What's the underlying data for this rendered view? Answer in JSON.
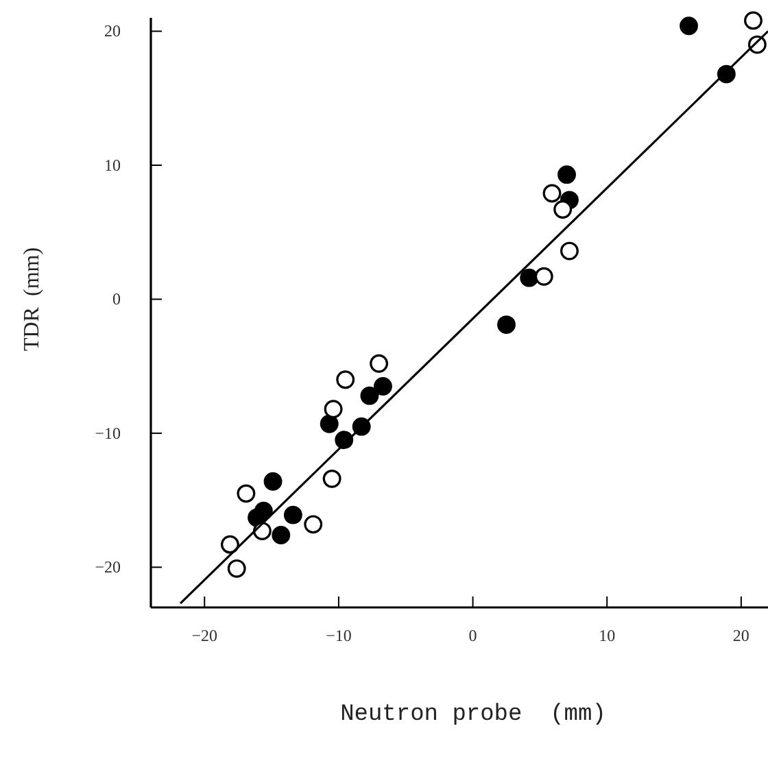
{
  "chart_data": {
    "type": "scatter",
    "xlabel": "Neutron probe  (mm)",
    "ylabel": "TDR  (mm)",
    "xlim": [
      -24,
      22
    ],
    "ylim": [
      -23,
      21
    ],
    "xticks": [
      -20,
      -10,
      0,
      10,
      20
    ],
    "yticks": [
      -20,
      -10,
      0,
      10,
      20
    ],
    "grid": false,
    "marker": "circle",
    "series": [
      {
        "color": "#000000",
        "x": [
          -6.7,
          -7.7,
          -10.7,
          -8.3,
          -9.6,
          -14.9,
          -13.4,
          -15.6,
          -16.1,
          -14.3,
          16.1,
          18.9,
          7.0,
          7.2,
          4.2,
          2.5
        ],
        "values": [
          -6.5,
          -7.2,
          -9.3,
          -9.5,
          -10.5,
          -13.6,
          -16.1,
          -15.8,
          -16.3,
          -17.6,
          20.4,
          16.8,
          9.3,
          7.4,
          1.6,
          -1.9
        ]
      },
      {
        "color": "#ffffff",
        "x": [
          -7.0,
          -9.5,
          -10.4,
          -10.5,
          -16.9,
          -11.9,
          -15.7,
          -18.1,
          -17.6,
          20.9,
          21.2,
          5.9,
          6.7,
          7.2,
          5.3
        ],
        "values": [
          -4.8,
          -6.0,
          -8.2,
          -13.4,
          -14.5,
          -16.8,
          -17.3,
          -18.3,
          -20.1,
          20.8,
          19.0,
          7.9,
          6.7,
          3.6,
          1.7
        ]
      },
      {
        "type": "line",
        "color": "#000000",
        "marker": "none",
        "x": [
          -21.8,
          22
        ],
        "values": [
          -22.7,
          20
        ]
      }
    ]
  }
}
